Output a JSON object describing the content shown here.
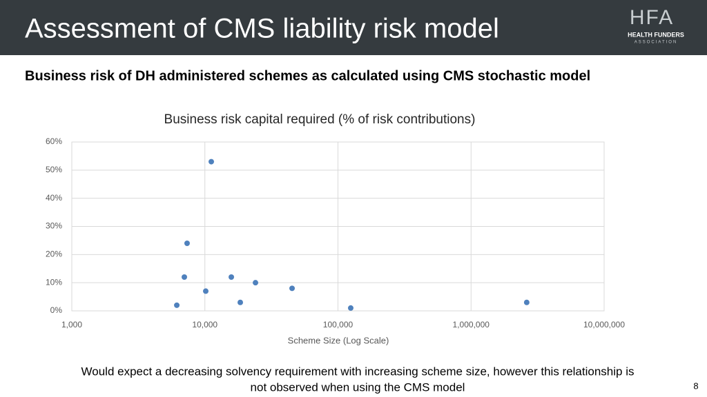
{
  "header": {
    "title": "Assessment of CMS liability risk model",
    "logo": {
      "mark": "HFA",
      "name": "HEALTH FUNDERS",
      "tagline": "ASSOCIATION"
    }
  },
  "subtitle": "Business risk of DH administered schemes as calculated using CMS stochastic model",
  "chart_data": {
    "type": "scatter",
    "title": "Business risk capital required (% of risk contributions)",
    "x_label": "Scheme Size (Log Scale)",
    "x": [
      6150,
      7010,
      7350,
      10150,
      11170,
      15800,
      18450,
      24000,
      45200,
      124700,
      2620000
    ],
    "values": [
      2,
      12,
      24,
      7,
      53,
      12,
      3,
      10,
      8,
      1,
      3
    ],
    "color": "#4f81bd",
    "xscale": "log",
    "xlim": [
      1000,
      10000000
    ],
    "xticks": [
      {
        "value": 1000,
        "label": "1,000"
      },
      {
        "value": 10000,
        "label": "10,000"
      },
      {
        "value": 100000,
        "label": "100,000"
      },
      {
        "value": 1000000,
        "label": "1,000,000"
      },
      {
        "value": 10000000,
        "label": "10,000,000"
      }
    ],
    "ylim": [
      0,
      60
    ],
    "yticks": [
      {
        "value": 0,
        "label": "0%"
      },
      {
        "value": 10,
        "label": "10%"
      },
      {
        "value": 20,
        "label": "20%"
      },
      {
        "value": 30,
        "label": "30%"
      },
      {
        "value": 40,
        "label": "40%"
      },
      {
        "value": 50,
        "label": "50%"
      },
      {
        "value": 60,
        "label": "60%"
      }
    ],
    "grid": true
  },
  "footer": {
    "lines": [
      "Would expect a decreasing solvency requirement with increasing scheme size, however this relationship is",
      "not observed when using the CMS model"
    ]
  },
  "page_number": "8"
}
